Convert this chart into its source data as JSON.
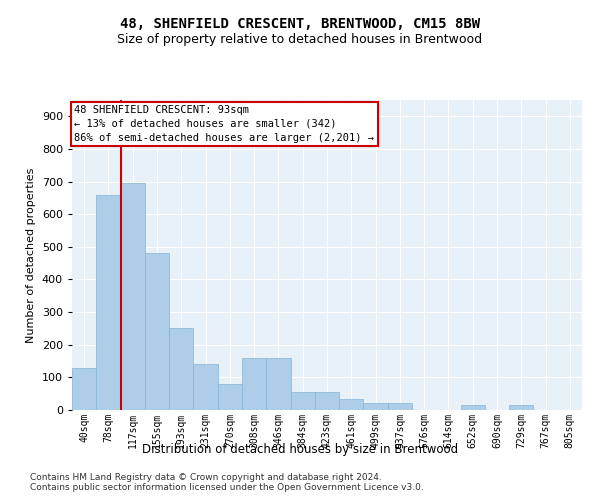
{
  "title": "48, SHENFIELD CRESCENT, BRENTWOOD, CM15 8BW",
  "subtitle": "Size of property relative to detached houses in Brentwood",
  "xlabel": "Distribution of detached houses by size in Brentwood",
  "ylabel": "Number of detached properties",
  "categories": [
    "40sqm",
    "78sqm",
    "117sqm",
    "155sqm",
    "193sqm",
    "231sqm",
    "270sqm",
    "308sqm",
    "346sqm",
    "384sqm",
    "423sqm",
    "461sqm",
    "499sqm",
    "537sqm",
    "576sqm",
    "614sqm",
    "652sqm",
    "690sqm",
    "729sqm",
    "767sqm",
    "805sqm"
  ],
  "values": [
    130,
    660,
    695,
    480,
    250,
    140,
    80,
    160,
    160,
    55,
    55,
    35,
    20,
    20,
    0,
    0,
    15,
    0,
    15,
    0,
    0
  ],
  "bar_color": "#aecde8",
  "bar_edge_color": "#85b4d4",
  "bg_color": "#e8f0f8",
  "grid_color": "#ffffff",
  "vline_color": "#cc0000",
  "vline_x": 1.5,
  "annotation_line1": "48 SHENFIELD CRESCENT: 93sqm",
  "annotation_line2": "← 13% of detached houses are smaller (342)",
  "annotation_line3": "86% of semi-detached houses are larger (2,201) →",
  "annotation_box_color": "#ffffff",
  "annotation_border_color": "#cc0000",
  "ylim": [
    0,
    950
  ],
  "yticks": [
    0,
    100,
    200,
    300,
    400,
    500,
    600,
    700,
    800,
    900
  ],
  "footer1": "Contains HM Land Registry data © Crown copyright and database right 2024.",
  "footer2": "Contains public sector information licensed under the Open Government Licence v3.0."
}
